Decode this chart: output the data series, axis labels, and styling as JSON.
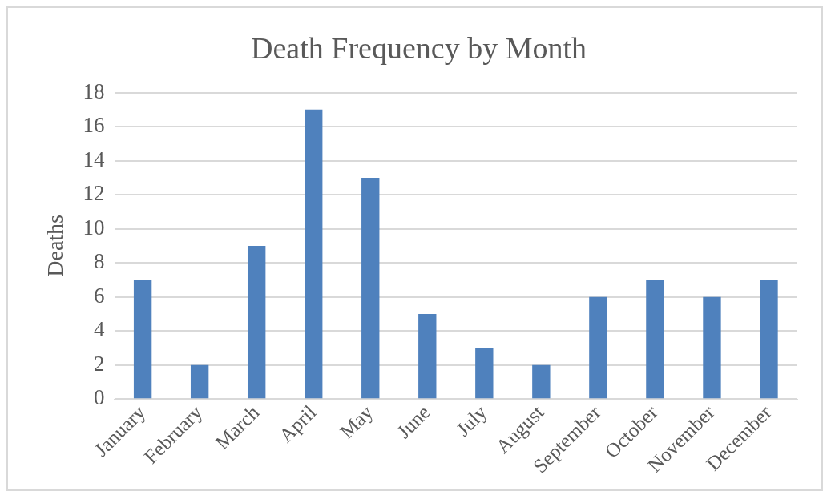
{
  "chart_data": {
    "type": "bar",
    "title": "Death Frequency by Month",
    "ylabel": "Deaths",
    "categories": [
      "January",
      "February",
      "March",
      "April",
      "May",
      "June",
      "July",
      "August",
      "September",
      "October",
      "November",
      "December"
    ],
    "values": [
      7,
      2,
      9,
      17,
      13,
      5,
      3,
      2,
      6,
      7,
      6,
      7
    ],
    "color": "#4f81bd",
    "ylim": [
      0,
      18
    ],
    "yticks": [
      0,
      2,
      4,
      6,
      8,
      10,
      12,
      14,
      16,
      18
    ],
    "grid": "y"
  }
}
